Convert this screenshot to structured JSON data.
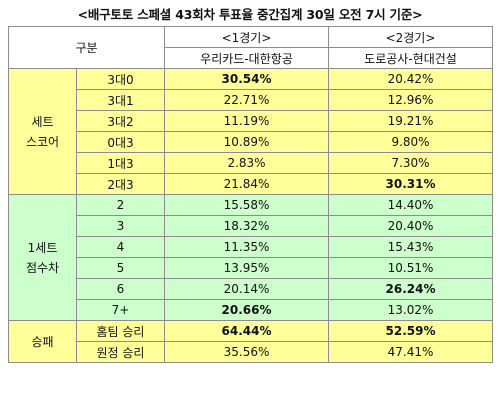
{
  "title": "<배구토토 스페셜 43회차 투표율 중간집계 30일 오전 7시 기준>",
  "header": {
    "category": "구분",
    "game1_no": "<1경기>",
    "game1_teams": "우리카드-대한항공",
    "game2_no": "<2경기>",
    "game2_teams": "도로공사-현대건설"
  },
  "set_score": {
    "group_line1": "세트",
    "group_line2": "스코어",
    "rows": [
      {
        "label": "3대0",
        "g1": "30.54%",
        "g2": "20.42%"
      },
      {
        "label": "3대1",
        "g1": "22.71%",
        "g2": "12.96%"
      },
      {
        "label": "3대2",
        "g1": "11.19%",
        "g2": "19.21%"
      },
      {
        "label": "0대3",
        "g1": "10.89%",
        "g2": "9.80%"
      },
      {
        "label": "1대3",
        "g1": "2.83%",
        "g2": "7.30%"
      },
      {
        "label": "2대3",
        "g1": "21.84%",
        "g2": "30.31%"
      }
    ]
  },
  "point_diff": {
    "group_line1": "1세트",
    "group_line2": "점수차",
    "rows": [
      {
        "label": "2",
        "g1": "15.58%",
        "g2": "14.40%"
      },
      {
        "label": "3",
        "g1": "18.32%",
        "g2": "20.40%"
      },
      {
        "label": "4",
        "g1": "11.35%",
        "g2": "15.43%"
      },
      {
        "label": "5",
        "g1": "13.95%",
        "g2": "10.51%"
      },
      {
        "label": "6",
        "g1": "20.14%",
        "g2": "26.24%"
      },
      {
        "label": "7+",
        "g1": "20.66%",
        "g2": "13.02%"
      }
    ]
  },
  "win_loss": {
    "group_label": "승패",
    "rows": [
      {
        "label": "홈팀 승리",
        "g1": "64.44%",
        "g2": "52.59%"
      },
      {
        "label": "원정 승리",
        "g1": "35.56%",
        "g2": "47.41%"
      }
    ]
  },
  "colors": {
    "yellow_fill": "#ffff99",
    "green_fill": "#ccffcc"
  }
}
